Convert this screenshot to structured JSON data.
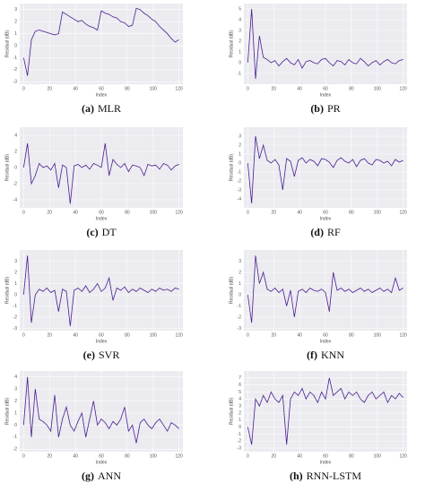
{
  "chart_data": [
    {
      "type": "line",
      "caption_label": "(a)",
      "caption_name": "MLR",
      "x_label": "Index",
      "y_label": "Residual (dB)",
      "x": [
        0,
        3,
        6,
        9,
        12,
        15,
        18,
        21,
        24,
        27,
        30,
        33,
        36,
        39,
        42,
        45,
        48,
        51,
        54,
        57,
        60,
        63,
        66,
        69,
        72,
        75,
        78,
        81,
        84,
        87,
        90,
        93,
        96,
        99,
        102,
        105,
        108,
        111,
        114,
        117,
        120
      ],
      "series": [
        {
          "name": "Residual",
          "color": "#4b1d8f",
          "values": [
            -1,
            -2.5,
            0.5,
            1.2,
            1.3,
            1.2,
            1.1,
            1.0,
            0.9,
            1.0,
            2.8,
            2.6,
            2.4,
            2.2,
            2.0,
            2.1,
            1.8,
            1.6,
            1.5,
            1.3,
            2.9,
            2.7,
            2.6,
            2.4,
            2.3,
            2.0,
            1.9,
            1.6,
            1.7,
            3.1,
            3.0,
            2.7,
            2.5,
            2.2,
            2.0,
            1.6,
            1.3,
            1.0,
            0.6,
            0.3,
            0.5
          ]
        }
      ],
      "xlim": [
        -3,
        123
      ],
      "xticks": [
        0,
        20,
        40,
        60,
        80,
        100,
        120
      ],
      "ylim": [
        -3.2,
        3.5
      ],
      "yticks": [
        -3,
        -2,
        -1,
        0,
        1,
        2,
        3
      ],
      "grid": true
    },
    {
      "type": "line",
      "caption_label": "(b)",
      "caption_name": "PR",
      "x_label": "Index",
      "y_label": "Residual (dB)",
      "x": [
        0,
        3,
        6,
        9,
        12,
        15,
        18,
        21,
        24,
        27,
        30,
        33,
        36,
        39,
        42,
        45,
        48,
        51,
        54,
        57,
        60,
        63,
        66,
        69,
        72,
        75,
        78,
        81,
        84,
        87,
        90,
        93,
        96,
        99,
        102,
        105,
        108,
        111,
        114,
        117,
        120
      ],
      "series": [
        {
          "name": "Residual",
          "color": "#4b1d8f",
          "values": [
            0,
            5,
            -1.5,
            2.5,
            0.5,
            0.3,
            0,
            0.2,
            -0.3,
            0.1,
            0.4,
            0,
            -0.2,
            0.3,
            -0.5,
            0.1,
            0.2,
            0,
            -0.1,
            0.3,
            0.4,
            0,
            -0.3,
            0.2,
            0.1,
            -0.2,
            0.3,
            0,
            -0.1,
            0.4,
            0.1,
            -0.3,
            0,
            0.2,
            -0.2,
            0.1,
            0.3,
            0,
            -0.1,
            0.2,
            0.3
          ]
        }
      ],
      "xlim": [
        -3,
        123
      ],
      "xticks": [
        0,
        20,
        40,
        60,
        80,
        100,
        120
      ],
      "ylim": [
        -2,
        5.5
      ],
      "yticks": [
        -1,
        0,
        1,
        2,
        3,
        4,
        5
      ],
      "grid": true
    },
    {
      "type": "line",
      "caption_label": "(c)",
      "caption_name": "DT",
      "x_label": "Index",
      "y_label": "Residual (dB)",
      "x": [
        0,
        3,
        6,
        9,
        12,
        15,
        18,
        21,
        24,
        27,
        30,
        33,
        36,
        39,
        42,
        45,
        48,
        51,
        54,
        57,
        60,
        63,
        66,
        69,
        72,
        75,
        78,
        81,
        84,
        87,
        90,
        93,
        96,
        99,
        102,
        105,
        108,
        111,
        114,
        117,
        120
      ],
      "series": [
        {
          "name": "Residual",
          "color": "#4b1d8f",
          "values": [
            0,
            3,
            -2,
            -1,
            0.5,
            0,
            0.2,
            -0.3,
            0.5,
            -2.5,
            0.3,
            0,
            -4.5,
            0.2,
            0.4,
            0,
            0.3,
            -0.2,
            0.5,
            0.3,
            0,
            3,
            -1,
            1,
            0.4,
            0,
            0.5,
            -0.5,
            0.3,
            0.2,
            0,
            -1,
            0.4,
            0.2,
            0.3,
            -0.2,
            0.5,
            0.3,
            -0.3,
            0.2,
            0.4
          ]
        }
      ],
      "xlim": [
        -3,
        123
      ],
      "xticks": [
        0,
        20,
        40,
        60,
        80,
        100,
        120
      ],
      "ylim": [
        -5,
        5
      ],
      "yticks": [
        -4,
        -2,
        0,
        2,
        4
      ],
      "grid": true
    },
    {
      "type": "line",
      "caption_label": "(d)",
      "caption_name": "RF",
      "x_label": "Index",
      "y_label": "Residual (dB)",
      "x": [
        0,
        3,
        6,
        9,
        12,
        15,
        18,
        21,
        24,
        27,
        30,
        33,
        36,
        39,
        42,
        45,
        48,
        51,
        54,
        57,
        60,
        63,
        66,
        69,
        72,
        75,
        78,
        81,
        84,
        87,
        90,
        93,
        96,
        99,
        102,
        105,
        108,
        111,
        114,
        117,
        120
      ],
      "series": [
        {
          "name": "Residual",
          "color": "#4b1d8f",
          "values": [
            0,
            -4.5,
            3,
            0.5,
            2,
            0.3,
            0,
            0.4,
            -0.2,
            -3,
            0.5,
            0.2,
            -1.5,
            0.3,
            0.6,
            0,
            0.4,
            0.2,
            -0.3,
            0.5,
            0.4,
            0.1,
            -0.5,
            0.3,
            0.6,
            0.2,
            0,
            0.4,
            -0.4,
            0.3,
            0.5,
            0,
            -0.2,
            0.4,
            0.3,
            0,
            0.2,
            -0.3,
            0.4,
            0.1,
            0.3
          ]
        }
      ],
      "xlim": [
        -3,
        123
      ],
      "xticks": [
        0,
        20,
        40,
        60,
        80,
        100,
        120
      ],
      "ylim": [
        -5,
        4
      ],
      "yticks": [
        -4,
        -3,
        -2,
        -1,
        0,
        1,
        2,
        3
      ],
      "grid": true
    },
    {
      "type": "line",
      "caption_label": "(e)",
      "caption_name": "SVR",
      "x_label": "Index",
      "y_label": "Residual (dB)",
      "x": [
        0,
        3,
        6,
        9,
        12,
        15,
        18,
        21,
        24,
        27,
        30,
        33,
        36,
        39,
        42,
        45,
        48,
        51,
        54,
        57,
        60,
        63,
        66,
        69,
        72,
        75,
        78,
        81,
        84,
        87,
        90,
        93,
        96,
        99,
        102,
        105,
        108,
        111,
        114,
        117,
        120
      ],
      "series": [
        {
          "name": "Residual",
          "color": "#4b1d8f",
          "values": [
            0,
            3.5,
            -2.5,
            0,
            0.5,
            0.3,
            0.6,
            0.2,
            0.4,
            -1.5,
            0.5,
            0.3,
            -2.8,
            0.4,
            0.6,
            0.3,
            0.8,
            0.2,
            0.5,
            1,
            0.3,
            0.6,
            1.5,
            -0.5,
            0.6,
            0.4,
            0.7,
            0.2,
            0.5,
            0.3,
            0.6,
            0.4,
            0.2,
            0.5,
            0.3,
            0.6,
            0.4,
            0.5,
            0.3,
            0.6,
            0.5
          ]
        }
      ],
      "xlim": [
        -3,
        123
      ],
      "xticks": [
        0,
        20,
        40,
        60,
        80,
        100,
        120
      ],
      "ylim": [
        -3.2,
        4
      ],
      "yticks": [
        -3,
        -2,
        -1,
        0,
        1,
        2,
        3
      ],
      "grid": true
    },
    {
      "type": "line",
      "caption_label": "(f)",
      "caption_name": "KNN",
      "x_label": "Index",
      "y_label": "Residual (dB)",
      "x": [
        0,
        3,
        6,
        9,
        12,
        15,
        18,
        21,
        24,
        27,
        30,
        33,
        36,
        39,
        42,
        45,
        48,
        51,
        54,
        57,
        60,
        63,
        66,
        69,
        72,
        75,
        78,
        81,
        84,
        87,
        90,
        93,
        96,
        99,
        102,
        105,
        108,
        111,
        114,
        117,
        120
      ],
      "series": [
        {
          "name": "Residual",
          "color": "#4b1d8f",
          "values": [
            0,
            -2.5,
            3.5,
            1,
            2,
            0.5,
            0.3,
            0.6,
            0.2,
            0.5,
            -1,
            0.4,
            -2,
            0.3,
            0.5,
            0.2,
            0.6,
            0.4,
            0.3,
            0.5,
            0.2,
            -1.5,
            2,
            0.4,
            0.6,
            0.3,
            0.5,
            0.2,
            0.4,
            0.6,
            0.3,
            0.5,
            0.2,
            0.4,
            0.6,
            0.3,
            0.5,
            0.2,
            1.5,
            0.4,
            0.6
          ]
        }
      ],
      "xlim": [
        -3,
        123
      ],
      "xticks": [
        0,
        20,
        40,
        60,
        80,
        100,
        120
      ],
      "ylim": [
        -3.2,
        4
      ],
      "yticks": [
        -3,
        -2,
        -1,
        0,
        1,
        2,
        3
      ],
      "grid": true
    },
    {
      "type": "line",
      "caption_label": "(g)",
      "caption_name": "ANN",
      "x_label": "Index",
      "y_label": "Residual (dB)",
      "x": [
        0,
        3,
        6,
        9,
        12,
        15,
        18,
        21,
        24,
        27,
        30,
        33,
        36,
        39,
        42,
        45,
        48,
        51,
        54,
        57,
        60,
        63,
        66,
        69,
        72,
        75,
        78,
        81,
        84,
        87,
        90,
        93,
        96,
        99,
        102,
        105,
        108,
        111,
        114,
        117,
        120
      ],
      "series": [
        {
          "name": "Residual",
          "color": "#4b1d8f",
          "values": [
            0,
            4,
            -1,
            3,
            0.5,
            0.3,
            0,
            -0.5,
            2.5,
            -1,
            0.5,
            1.5,
            0,
            -0.5,
            0.3,
            1,
            -1,
            0.5,
            2,
            0,
            0.5,
            0.2,
            -0.3,
            0.3,
            0,
            0.5,
            1.5,
            -0.5,
            0,
            -1.5,
            0.2,
            0.5,
            0,
            -0.3,
            0.2,
            0.5,
            0,
            -0.5,
            0.2,
            0,
            -0.3
          ]
        }
      ],
      "xlim": [
        -3,
        123
      ],
      "xticks": [
        0,
        20,
        40,
        60,
        80,
        100,
        120
      ],
      "ylim": [
        -2.2,
        4.5
      ],
      "yticks": [
        -2,
        -1,
        0,
        1,
        2,
        3,
        4
      ],
      "grid": true
    },
    {
      "type": "line",
      "caption_label": "(h)",
      "caption_name": "RNN-LSTM",
      "x_label": "Index",
      "y_label": "Residual (dB)",
      "x": [
        0,
        3,
        6,
        9,
        12,
        15,
        18,
        21,
        24,
        27,
        30,
        33,
        36,
        39,
        42,
        45,
        48,
        51,
        54,
        57,
        60,
        63,
        66,
        69,
        72,
        75,
        78,
        81,
        84,
        87,
        90,
        93,
        96,
        99,
        102,
        105,
        108,
        111,
        114,
        117,
        120
      ],
      "series": [
        {
          "name": "Residual",
          "color": "#4b1d8f",
          "values": [
            0,
            -2.5,
            4,
            3,
            4.5,
            3.5,
            5,
            4,
            3.5,
            4.5,
            -2.5,
            4,
            5,
            4.5,
            5.5,
            4,
            5,
            4.5,
            3.5,
            5,
            4,
            7,
            4.5,
            5,
            5.5,
            4,
            5,
            4.5,
            5,
            4,
            3.5,
            4.5,
            5,
            4,
            4.5,
            5,
            3.5,
            4.5,
            4,
            4.8,
            4.2
          ]
        }
      ],
      "xlim": [
        -3,
        123
      ],
      "xticks": [
        0,
        20,
        40,
        60,
        80,
        100,
        120
      ],
      "ylim": [
        -3.5,
        8
      ],
      "yticks": [
        -3,
        -2,
        -1,
        0,
        1,
        2,
        3,
        4,
        5,
        6,
        7
      ],
      "grid": true
    }
  ]
}
